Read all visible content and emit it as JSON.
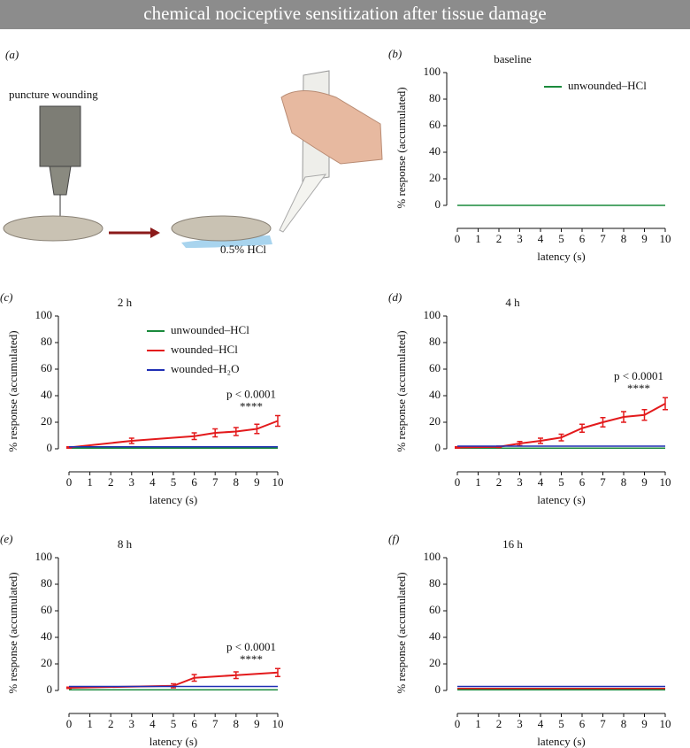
{
  "header": {
    "title": "chemical nociceptive sensitization after tissue damage"
  },
  "illustration": {
    "panel": "(a)",
    "labels": [
      "puncture wounding",
      "0.5% HCl"
    ]
  },
  "chart_data": [
    {
      "type": "line",
      "panel": "(b)",
      "title": "baseline",
      "xlabel": "latency (s)",
      "ylabel": "% response (accumulated)",
      "xlim": [
        0,
        10
      ],
      "ylim": [
        0,
        100
      ],
      "xticks": [
        0,
        1,
        2,
        3,
        4,
        5,
        6,
        7,
        8,
        9,
        10
      ],
      "yticks": [
        0,
        20,
        40,
        60,
        80,
        100
      ],
      "legend": true,
      "series": [
        {
          "name": "unwounded–HCl",
          "color": "#1a8a3c",
          "x": [
            0,
            10
          ],
          "values": [
            0,
            0
          ]
        }
      ]
    },
    {
      "type": "line",
      "panel": "(c)",
      "title": "2 h",
      "xlabel": "latency (s)",
      "ylabel": "% response (accumulated)",
      "xlim": [
        0,
        10
      ],
      "ylim": [
        0,
        100
      ],
      "xticks": [
        0,
        1,
        2,
        3,
        4,
        5,
        6,
        7,
        8,
        9,
        10
      ],
      "yticks": [
        0,
        20,
        40,
        60,
        80,
        100
      ],
      "legend": true,
      "annotations": [
        "p < 0.0001",
        "****"
      ],
      "series": [
        {
          "name": "unwounded–HCl",
          "color": "#1a8a3c",
          "x": [
            0,
            10
          ],
          "values": [
            0.5,
            0.5
          ]
        },
        {
          "name": "wounded–HCl",
          "color": "#e31a1c",
          "x": [
            0,
            3,
            6,
            7,
            8,
            9,
            10
          ],
          "values": [
            1,
            6,
            9.5,
            12,
            13,
            15,
            21
          ],
          "errors": [
            0.5,
            2,
            2.5,
            3,
            3,
            3.5,
            4
          ]
        },
        {
          "name": "wounded–H₂O",
          "color": "#1f2fb4",
          "x": [
            0,
            10
          ],
          "values": [
            1.5,
            1.5
          ]
        }
      ]
    },
    {
      "type": "line",
      "panel": "(d)",
      "title": "4 h",
      "xlabel": "latency (s)",
      "ylabel": "% response (accumulated)",
      "xlim": [
        0,
        10
      ],
      "ylim": [
        0,
        100
      ],
      "xticks": [
        0,
        1,
        2,
        3,
        4,
        5,
        6,
        7,
        8,
        9,
        10
      ],
      "yticks": [
        0,
        20,
        40,
        60,
        80,
        100
      ],
      "annotations": [
        "p < 0.0001",
        "****"
      ],
      "series": [
        {
          "color": "#1a8a3c",
          "x": [
            0,
            10
          ],
          "values": [
            0.5,
            0.5
          ]
        },
        {
          "color": "#e31a1c",
          "x": [
            0,
            2,
            3,
            4,
            5,
            6,
            7,
            8,
            9,
            10
          ],
          "values": [
            1,
            1.5,
            4,
            6,
            8.5,
            15.5,
            20,
            24,
            25.5,
            34
          ],
          "errors": [
            0.5,
            0.5,
            1.5,
            2,
            2.5,
            3,
            3.5,
            4,
            4,
            4.5
          ]
        },
        {
          "color": "#1f2fb4",
          "x": [
            0,
            10
          ],
          "values": [
            2,
            2
          ]
        }
      ]
    },
    {
      "type": "line",
      "panel": "(e)",
      "title": "8 h",
      "xlabel": "latency (s)",
      "ylabel": "% response (accumulated)",
      "xlim": [
        0,
        10
      ],
      "ylim": [
        0,
        100
      ],
      "xticks": [
        0,
        1,
        2,
        3,
        4,
        5,
        6,
        7,
        8,
        9,
        10
      ],
      "yticks": [
        0,
        20,
        40,
        60,
        80,
        100
      ],
      "annotations": [
        "p < 0.0001",
        "****"
      ],
      "series": [
        {
          "color": "#1a8a3c",
          "x": [
            0,
            10
          ],
          "values": [
            0.5,
            0.5
          ]
        },
        {
          "color": "#e31a1c",
          "x": [
            0,
            5,
            6,
            8,
            10
          ],
          "values": [
            2,
            3.5,
            9.5,
            11.5,
            13.5
          ],
          "errors": [
            0.5,
            1.5,
            2.5,
            2.5,
            3
          ]
        },
        {
          "color": "#1f2fb4",
          "x": [
            0,
            10
          ],
          "values": [
            3,
            3
          ]
        }
      ]
    },
    {
      "type": "line",
      "panel": "(f)",
      "title": "16 h",
      "xlabel": "latency (s)",
      "ylabel": "% response (accumulated)",
      "xlim": [
        0,
        10
      ],
      "ylim": [
        0,
        100
      ],
      "xticks": [
        0,
        1,
        2,
        3,
        4,
        5,
        6,
        7,
        8,
        9,
        10
      ],
      "yticks": [
        0,
        20,
        40,
        60,
        80,
        100
      ],
      "series": [
        {
          "color": "#1a8a3c",
          "x": [
            0,
            10
          ],
          "values": [
            0.5,
            0.5
          ]
        },
        {
          "color": "#e31a1c",
          "x": [
            0,
            10
          ],
          "values": [
            1.5,
            1.5
          ]
        },
        {
          "color": "#1f2fb4",
          "x": [
            0,
            10
          ],
          "values": [
            3,
            3
          ]
        }
      ]
    }
  ]
}
